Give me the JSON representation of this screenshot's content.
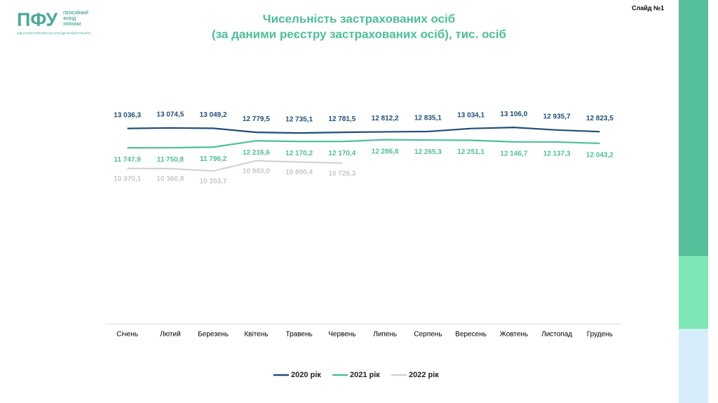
{
  "header": {
    "logo": "ПФУ",
    "org_name": [
      "ПЕНСІЙНИЙ",
      "ФОНД",
      "УКРАЇНИ"
    ],
    "tagline": "ЄДНАЄМО ПОКОЛІННЯ ЗАРАДИ МАЙБУТНЬОГО",
    "slide": "Слайд №1"
  },
  "chart_data": {
    "type": "line",
    "title": [
      "Чисельність застрахованих осіб",
      "(за даними реєстру застрахованих осіб), тис. осіб"
    ],
    "categories": [
      "Січень",
      "Лютий",
      "Березень",
      "Квітень",
      "Травень",
      "Червень",
      "Липень",
      "Серпень",
      "Вересень",
      "Жовтень",
      "Листопад",
      "Грудень"
    ],
    "ylim": [
      0,
      14000
    ],
    "legend": "bottom",
    "series": [
      {
        "name": "2020 рік",
        "color": "#1f4e79",
        "values": [
          13036.3,
          13074.5,
          13049.2,
          12779.5,
          12735.1,
          12781.5,
          12812.2,
          12835.1,
          13034.1,
          13106.0,
          12935.7,
          12823.5
        ],
        "value_labels": [
          "13 036,3",
          "13 074,5",
          "13 049,2",
          "12 779,5",
          "12 735,1",
          "12 781,5",
          "12 812,2",
          "12 835,1",
          "13 034,1",
          "13 106,0",
          "12 935,7",
          "12 823,5"
        ]
      },
      {
        "name": "2021 рік",
        "color": "#4cbf9a",
        "values": [
          11747.9,
          11750.8,
          11796.2,
          12216.6,
          12170.2,
          12170.4,
          12286.8,
          12265.3,
          12251.1,
          12146.7,
          12137.3,
          12043.2
        ],
        "value_labels": [
          "11 747,9",
          "11 750,8",
          "11 796,2",
          "12 216,6",
          "12 170,2",
          "12 170,4",
          "12 286,8",
          "12 265,3",
          "12 251,1",
          "12 146,7",
          "12 137,3",
          "12 043,2"
        ]
      },
      {
        "name": "2022 рік",
        "color": "#d3d3d3",
        "values": [
          10370.1,
          10360.8,
          10203.7,
          10883.0,
          10800.4,
          10726.3,
          null,
          null,
          null,
          null,
          null,
          null
        ],
        "value_labels": [
          "10 370,1",
          "10 360,8",
          "10 203,7",
          "10 883,0",
          "10 800,4",
          "10 726,3",
          null,
          null,
          null,
          null,
          null,
          null
        ]
      }
    ]
  }
}
